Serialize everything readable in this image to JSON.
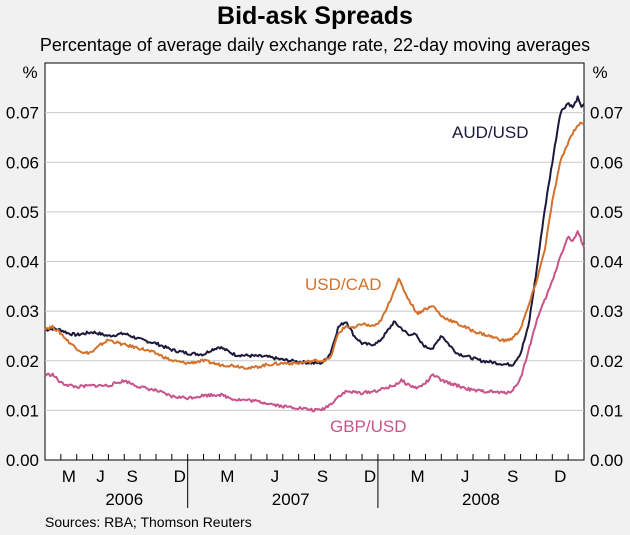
{
  "chart_data": {
    "type": "line",
    "title": "Bid-ask Spreads",
    "subtitle": "Percentage of average daily exchange rate, 22-day moving averages",
    "unit_left": "%",
    "unit_right": "%",
    "source": "Sources: RBA; Thomson Reuters",
    "ylim": [
      0,
      0.08
    ],
    "yticks": [
      "0.00",
      "0.01",
      "0.02",
      "0.03",
      "0.04",
      "0.05",
      "0.06",
      "0.07"
    ],
    "x_start": "2006-04",
    "x_end": "2009-01",
    "month_ticks": [
      {
        "label": "M",
        "t": 1.5
      },
      {
        "label": "J",
        "t": 3.5
      },
      {
        "label": "S",
        "t": 5.5
      },
      {
        "label": "D",
        "t": 8.5
      },
      {
        "label": "M",
        "t": 11.5
      },
      {
        "label": "J",
        "t": 14.5
      },
      {
        "label": "S",
        "t": 17.5
      },
      {
        "label": "D",
        "t": 20.5
      },
      {
        "label": "M",
        "t": 23.5
      },
      {
        "label": "J",
        "t": 26.5
      },
      {
        "label": "S",
        "t": 29.5
      },
      {
        "label": "D",
        "t": 32.5
      }
    ],
    "years": [
      {
        "label": "2006",
        "t": 5
      },
      {
        "label": "2007",
        "t": 15.5
      },
      {
        "label": "2008",
        "t": 27.5
      }
    ],
    "year_dividers": [
      9,
      21
    ],
    "series": [
      {
        "name": "AUD/USD",
        "color": "#1c1a3c",
        "t": [
          0,
          0.5,
          1,
          1.5,
          2,
          3,
          4,
          5,
          6,
          7,
          8,
          9,
          10,
          10.5,
          11,
          12,
          13,
          14,
          15,
          16,
          17,
          17.5,
          18,
          18.5,
          19,
          19.5,
          20,
          20.5,
          21,
          21.5,
          22,
          22.5,
          23,
          23.3,
          23.6,
          24,
          24.5,
          25,
          25.5,
          26,
          26.5,
          27,
          27.5,
          28,
          29,
          29.5,
          30,
          30.5,
          31,
          31.5,
          32,
          32.5,
          33,
          33.3,
          33.6,
          33.8,
          34
        ],
        "values": [
          0.0262,
          0.0265,
          0.0262,
          0.0255,
          0.0252,
          0.0258,
          0.025,
          0.0255,
          0.0243,
          0.0235,
          0.0222,
          0.0215,
          0.0213,
          0.0222,
          0.0228,
          0.0212,
          0.021,
          0.0208,
          0.0202,
          0.0198,
          0.0195,
          0.0196,
          0.0215,
          0.0268,
          0.028,
          0.025,
          0.0235,
          0.0232,
          0.0236,
          0.0255,
          0.0278,
          0.0265,
          0.025,
          0.0258,
          0.024,
          0.0228,
          0.0225,
          0.0252,
          0.0232,
          0.0215,
          0.021,
          0.0205,
          0.02,
          0.0198,
          0.0193,
          0.0192,
          0.0215,
          0.027,
          0.038,
          0.05,
          0.06,
          0.07,
          0.072,
          0.071,
          0.073,
          0.0712,
          0.0718
        ]
      },
      {
        "name": "USD/CAD",
        "color": "#d2722d",
        "t": [
          0,
          0.5,
          1,
          1.5,
          2,
          2.5,
          3,
          3.5,
          4,
          5,
          6,
          7,
          8,
          9,
          10,
          11,
          12,
          13,
          14,
          15,
          16,
          17,
          17.5,
          18,
          18.5,
          19,
          19.5,
          20,
          20.5,
          21,
          21.5,
          22,
          22.3,
          22.6,
          23,
          23.5,
          24,
          24.5,
          25,
          26,
          27,
          28,
          29,
          29.5,
          30,
          30.5,
          31,
          31.5,
          32,
          32.5,
          33,
          33.3,
          33.6,
          34
        ],
        "values": [
          0.0265,
          0.0268,
          0.0255,
          0.0238,
          0.0225,
          0.0215,
          0.0218,
          0.0232,
          0.0242,
          0.0232,
          0.0225,
          0.0215,
          0.02,
          0.0195,
          0.02,
          0.0192,
          0.019,
          0.0185,
          0.0192,
          0.0195,
          0.0195,
          0.02,
          0.02,
          0.0205,
          0.0255,
          0.027,
          0.0265,
          0.0275,
          0.027,
          0.0272,
          0.03,
          0.034,
          0.0365,
          0.0345,
          0.032,
          0.0295,
          0.0305,
          0.031,
          0.029,
          0.0275,
          0.026,
          0.025,
          0.024,
          0.0245,
          0.0265,
          0.031,
          0.036,
          0.042,
          0.052,
          0.06,
          0.064,
          0.066,
          0.0675,
          0.068
        ]
      },
      {
        "name": "GBP/USD",
        "color": "#c7548a",
        "t": [
          0,
          0.5,
          1,
          2,
          3,
          4,
          5,
          6,
          7,
          8,
          9,
          10,
          11,
          12,
          13,
          14,
          15,
          16,
          17,
          17.5,
          18,
          18.5,
          19,
          20,
          21,
          22,
          22.5,
          23,
          23.5,
          24,
          24.5,
          25,
          26,
          27,
          28,
          29,
          29.5,
          30,
          30.5,
          31,
          31.5,
          32,
          32.5,
          33,
          33.3,
          33.6,
          34
        ],
        "values": [
          0.0172,
          0.0172,
          0.0155,
          0.0147,
          0.015,
          0.015,
          0.016,
          0.0147,
          0.014,
          0.0128,
          0.0125,
          0.013,
          0.0132,
          0.0122,
          0.012,
          0.0115,
          0.0108,
          0.0105,
          0.01,
          0.0102,
          0.0112,
          0.0128,
          0.0138,
          0.0135,
          0.014,
          0.015,
          0.016,
          0.015,
          0.0145,
          0.0155,
          0.0172,
          0.016,
          0.015,
          0.014,
          0.0138,
          0.0135,
          0.014,
          0.0165,
          0.022,
          0.028,
          0.032,
          0.036,
          0.041,
          0.045,
          0.044,
          0.046,
          0.043
        ]
      }
    ]
  }
}
